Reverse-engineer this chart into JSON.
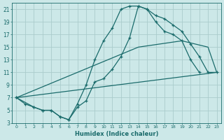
{
  "xlabel": "Humidex (Indice chaleur)",
  "bg_color": "#cce8e8",
  "grid_color": "#aacccc",
  "line_color": "#1a6b6b",
  "xlim": [
    -0.5,
    23.5
  ],
  "ylim": [
    3,
    22
  ],
  "xticks": [
    0,
    1,
    2,
    3,
    4,
    5,
    6,
    7,
    8,
    9,
    10,
    11,
    12,
    13,
    14,
    15,
    16,
    17,
    18,
    19,
    20,
    21,
    22,
    23
  ],
  "yticks": [
    3,
    5,
    7,
    9,
    11,
    13,
    15,
    17,
    19,
    21
  ],
  "series": [
    {
      "x": [
        0,
        1,
        2,
        3,
        4,
        5,
        6,
        7,
        8,
        9,
        10,
        11,
        12,
        13,
        14,
        15,
        16,
        17,
        18,
        19,
        20,
        21
      ],
      "y": [
        7,
        6,
        5.5,
        5,
        5,
        4,
        3.5,
        6,
        9,
        13,
        16,
        18,
        21,
        21.5,
        21.5,
        21,
        19,
        17.5,
        17,
        16,
        13,
        11
      ],
      "marker": true
    },
    {
      "x": [
        0,
        2,
        3,
        4,
        5,
        6,
        7,
        8,
        9,
        10,
        11,
        12,
        13,
        14,
        15,
        16,
        17,
        18,
        19,
        20,
        21,
        22,
        23
      ],
      "y": [
        7,
        5.5,
        5,
        5,
        4,
        3.5,
        5.5,
        6.5,
        9.5,
        10,
        11.5,
        13.5,
        16.5,
        21.5,
        21,
        20,
        19.5,
        18.5,
        17.5,
        15.5,
        13.5,
        11,
        11
      ],
      "marker": true
    },
    {
      "x": [
        0,
        14,
        19,
        22,
        23
      ],
      "y": [
        7,
        15,
        16,
        15,
        11
      ],
      "marker": false
    },
    {
      "x": [
        0,
        23
      ],
      "y": [
        7,
        11
      ],
      "marker": false
    }
  ]
}
